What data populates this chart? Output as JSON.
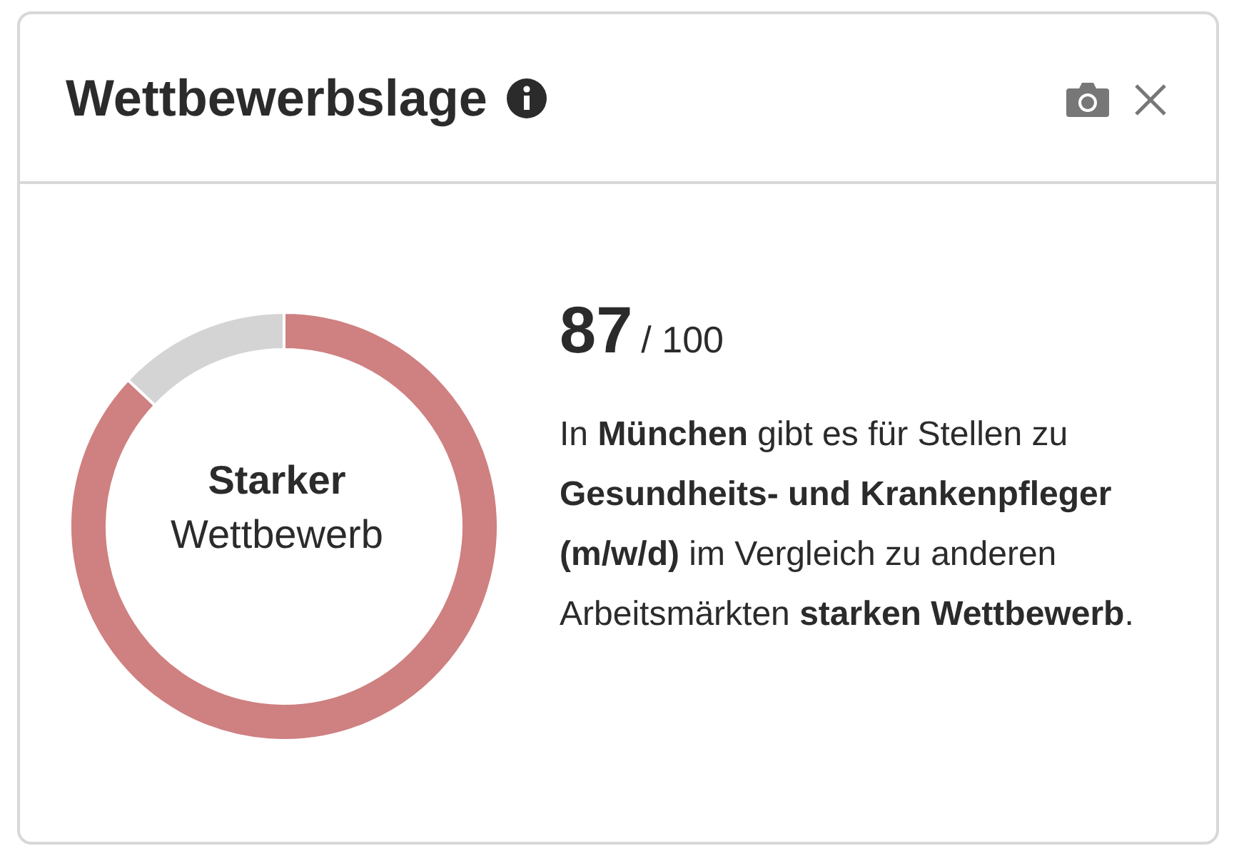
{
  "chart_data": {
    "type": "donut",
    "title": "Wettbewerbslage",
    "categories": [
      null,
      null
    ],
    "values": [
      87,
      13
    ],
    "colors": [
      "#cf8080",
      "#d4d4d4"
    ],
    "annotations": [
      "Starker",
      "Wettbewerb",
      "87",
      "/ 100",
      "In ",
      "München",
      " gibt es für Stellen zu ",
      "Gesundheits- und Krankenpfleger (m/w/d)",
      " im Vergleich zu anderen Arbeitsmärkten ",
      "starken Wettbewerb",
      "."
    ]
  }
}
